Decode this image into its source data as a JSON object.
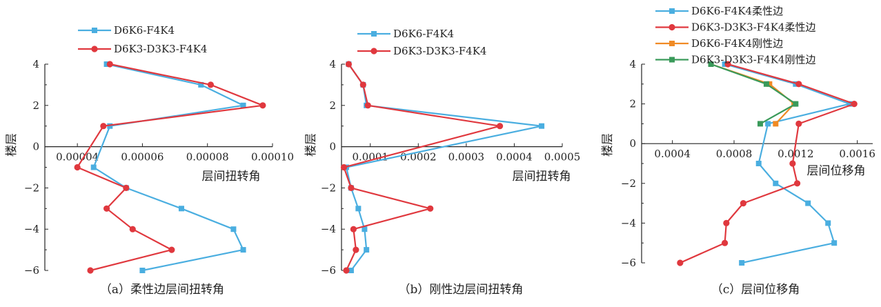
{
  "chart_data": [
    {
      "type": "line",
      "caption": "（a）柔性边层间扭转角",
      "xlabel": "层间扭转角",
      "ylabel": "楼层",
      "xlim": [
        3e-05,
        0.0001
      ],
      "ylim": [
        -6,
        4
      ],
      "xticks": [
        4e-05,
        6e-05,
        8e-05,
        0.0001
      ],
      "xtick_labels": [
        "0.00004",
        "0.00006",
        "0.00008",
        "0.00010"
      ],
      "yticks": [
        4,
        2,
        0,
        -2,
        -4,
        -6
      ],
      "ytick_labels": [
        "4",
        "2",
        "0",
        "−2",
        "−4",
        "−6"
      ],
      "legend_position": "top-left",
      "series": [
        {
          "name": "D6K6-F4K4",
          "color": "#4aaee0",
          "marker": "square",
          "x": [
            4.9e-05,
            7.8e-05,
            9.1e-05,
            5e-05,
            4.5e-05,
            5.5e-05,
            7.2e-05,
            8.8e-05,
            9.1e-05,
            6e-05
          ],
          "y": [
            4,
            3,
            2,
            1,
            -1,
            -2,
            -3,
            -4,
            -5,
            -6
          ]
        },
        {
          "name": "D6K3-D3K3-F4K4",
          "color": "#e0383e",
          "marker": "circle",
          "x": [
            5e-05,
            8.1e-05,
            9.7e-05,
            4.8e-05,
            4e-05,
            5.5e-05,
            4.9e-05,
            5.7e-05,
            6.9e-05,
            4.4e-05
          ],
          "y": [
            4,
            3,
            2,
            1,
            -1,
            -2,
            -3,
            -4,
            -5,
            -6
          ]
        }
      ]
    },
    {
      "type": "line",
      "caption": "（b）刚性边层间扭转角",
      "xlabel": "层间扭转角",
      "ylabel": "楼层",
      "xlim": [
        4e-05,
        0.0005
      ],
      "ylim": [
        -6,
        4
      ],
      "xticks": [
        0.0001,
        0.0002,
        0.0003,
        0.0004,
        0.0005
      ],
      "xtick_labels": [
        "0.0001",
        "0.0002",
        "0.0003",
        "0.0004",
        "0.0005"
      ],
      "yticks": [
        4,
        2,
        0,
        -2,
        -4,
        -6
      ],
      "ytick_labels": [
        "4",
        "2",
        "0",
        "−2",
        "−4",
        "−6"
      ],
      "legend_position": "top",
      "series": [
        {
          "name": "D6K6-F4K4",
          "color": "#4aaee0",
          "marker": "square",
          "x": [
            5.5e-05,
            8.5e-05,
            9.2e-05,
            0.000457,
            5e-05,
            6e-05,
            7.5e-05,
            8.8e-05,
            9.2e-05,
            6e-05
          ],
          "y": [
            4,
            3,
            2,
            1,
            -1,
            -2,
            -3,
            -4,
            -5,
            -6
          ]
        },
        {
          "name": "D6K3-D3K3-F4K4",
          "color": "#e0383e",
          "marker": "circle",
          "x": [
            5.5e-05,
            8.5e-05,
            9.5e-05,
            0.00037,
            4.5e-05,
            6e-05,
            0.000225,
            6.5e-05,
            7e-05,
            5e-05
          ],
          "y": [
            4,
            3,
            2,
            1,
            -1,
            -2,
            -3,
            -4,
            -5,
            -6
          ]
        }
      ]
    },
    {
      "type": "line",
      "caption": "（c）层间位移角",
      "xlabel": "层间位移角",
      "ylabel": "楼层",
      "xlim": [
        0.0002,
        0.0017
      ],
      "ylim": [
        -6,
        4
      ],
      "xticks": [
        0.0004,
        0.0008,
        0.0012,
        0.0016
      ],
      "xtick_labels": [
        "0.0004",
        "0.0008",
        "0.0012",
        "0.0016"
      ],
      "yticks": [
        4,
        2,
        0,
        -2,
        -4,
        -6
      ],
      "ytick_labels": [
        "4",
        "2",
        "0",
        "−2",
        "−4",
        "−6"
      ],
      "legend_position": "top",
      "series": [
        {
          "name": "D6K6-F4K4柔性边",
          "color": "#4aaee0",
          "marker": "square",
          "x": [
            0.00074,
            0.0012,
            0.00155,
            0.00102,
            0.00096,
            0.00107,
            0.00128,
            0.00141,
            0.00145,
            0.00085
          ],
          "y": [
            4,
            3,
            2,
            1,
            -1,
            -2,
            -3,
            -4,
            -5,
            -6
          ]
        },
        {
          "name": "D6K3-D3K3-F4K4柔性边",
          "color": "#e0383e",
          "marker": "circle",
          "x": [
            0.00076,
            0.00122,
            0.00158,
            0.00122,
            0.00118,
            0.00121,
            0.00086,
            0.00075,
            0.00074,
            0.00045
          ],
          "y": [
            4,
            3,
            2,
            1,
            -1,
            -2,
            -3,
            -4,
            -5,
            -6
          ]
        },
        {
          "name": "D6K6-F4K4刚性边",
          "color": "#f08a24",
          "marker": "square",
          "x": [
            0.00065,
            0.00103,
            0.00119,
            0.00107
          ],
          "y": [
            4,
            3,
            2,
            1
          ]
        },
        {
          "name": "D6K3-D3K3-F4K4刚性边",
          "color": "#3a9a5a",
          "marker": "square",
          "x": [
            0.00065,
            0.00101,
            0.0012,
            0.00097
          ],
          "y": [
            4,
            3,
            2,
            1
          ]
        }
      ]
    }
  ]
}
